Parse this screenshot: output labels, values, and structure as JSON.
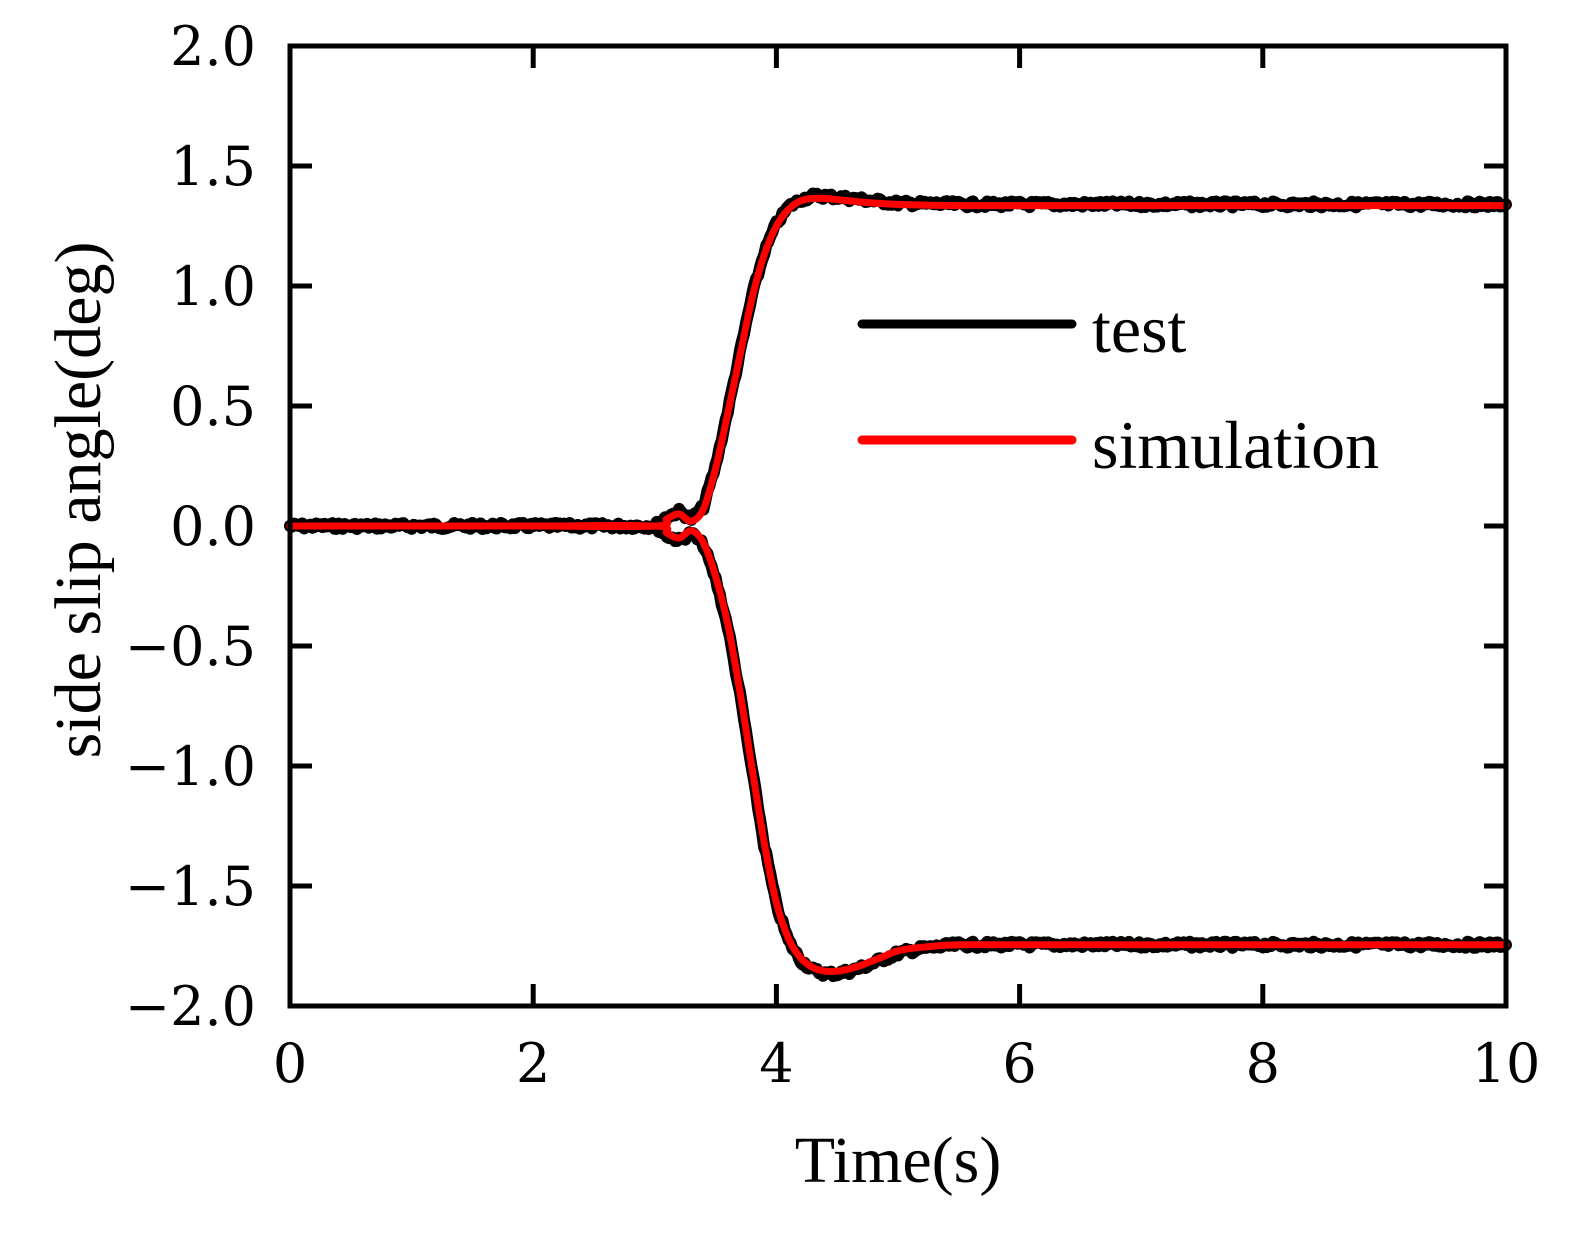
{
  "chart_data": {
    "type": "line",
    "title": "",
    "xlabel": "Time(s)",
    "ylabel": "side slip angle(deg)",
    "xlim": [
      0,
      10
    ],
    "ylim": [
      -2.0,
      2.0
    ],
    "xticks": [
      "0",
      "2",
      "4",
      "6",
      "8",
      "10"
    ],
    "yticks": [
      "2.0",
      "1.5",
      "1.0",
      "0.5",
      "0.0",
      "−0.5",
      "−1.0",
      "−1.5",
      "−2.0"
    ],
    "legend": {
      "position": "center-right"
    },
    "series": [
      {
        "name": "test",
        "color": "#000000",
        "curves": [
          {
            "x": [
              0,
              1,
              2,
              3,
              3.1,
              3.2,
              3.3,
              3.4,
              3.5,
              3.6,
              3.7,
              3.8,
              3.9,
              4.0,
              4.1,
              4.2,
              4.3,
              4.4,
              4.5,
              4.7,
              5.0,
              5.5,
              6,
              7,
              8,
              9,
              10
            ],
            "y": [
              0,
              0,
              0,
              0,
              0.04,
              0.06,
              0.03,
              0.08,
              0.25,
              0.48,
              0.72,
              0.96,
              1.14,
              1.26,
              1.33,
              1.36,
              1.375,
              1.375,
              1.37,
              1.36,
              1.345,
              1.34,
              1.34,
              1.34,
              1.34,
              1.34,
              1.34
            ]
          },
          {
            "x": [
              0,
              1,
              2,
              3,
              3.1,
              3.2,
              3.3,
              3.4,
              3.5,
              3.6,
              3.7,
              3.8,
              3.9,
              4.0,
              4.1,
              4.2,
              4.3,
              4.4,
              4.5,
              4.6,
              4.7,
              4.8,
              4.9,
              5.0,
              5.2,
              5.5,
              6,
              7,
              8,
              9,
              10
            ],
            "y": [
              0,
              0,
              0,
              0,
              -0.04,
              -0.06,
              -0.03,
              -0.08,
              -0.22,
              -0.42,
              -0.7,
              -1.02,
              -1.33,
              -1.58,
              -1.73,
              -1.81,
              -1.85,
              -1.865,
              -1.865,
              -1.855,
              -1.84,
              -1.82,
              -1.8,
              -1.78,
              -1.76,
              -1.745,
              -1.745,
              -1.745,
              -1.745,
              -1.745,
              -1.745
            ]
          }
        ]
      },
      {
        "name": "simulation",
        "color": "#ff0000",
        "curves": [
          {
            "x": [
              0,
              1,
              2,
              3,
              3.1,
              3.2,
              3.3,
              3.4,
              3.5,
              3.6,
              3.7,
              3.8,
              3.9,
              4.0,
              4.1,
              4.2,
              4.3,
              4.4,
              4.5,
              4.7,
              5.0,
              5.5,
              6,
              7,
              8,
              9,
              10
            ],
            "y": [
              0,
              0,
              0,
              0,
              0.03,
              0.05,
              0.02,
              0.07,
              0.24,
              0.47,
              0.71,
              0.95,
              1.13,
              1.25,
              1.32,
              1.355,
              1.365,
              1.365,
              1.36,
              1.35,
              1.34,
              1.335,
              1.335,
              1.335,
              1.335,
              1.335,
              1.335
            ]
          },
          {
            "x": [
              0,
              1,
              2,
              3,
              3.1,
              3.2,
              3.3,
              3.4,
              3.5,
              3.6,
              3.7,
              3.8,
              3.9,
              4.0,
              4.1,
              4.2,
              4.3,
              4.4,
              4.5,
              4.6,
              4.7,
              4.8,
              4.9,
              5.0,
              5.2,
              5.5,
              6,
              7,
              8,
              9,
              10
            ],
            "y": [
              0,
              0,
              0,
              0,
              -0.03,
              -0.05,
              -0.02,
              -0.07,
              -0.21,
              -0.41,
              -0.69,
              -1.01,
              -1.32,
              -1.57,
              -1.72,
              -1.8,
              -1.84,
              -1.855,
              -1.855,
              -1.845,
              -1.83,
              -1.81,
              -1.79,
              -1.77,
              -1.755,
              -1.745,
              -1.745,
              -1.745,
              -1.745,
              -1.745,
              -1.745
            ]
          }
        ]
      }
    ]
  }
}
